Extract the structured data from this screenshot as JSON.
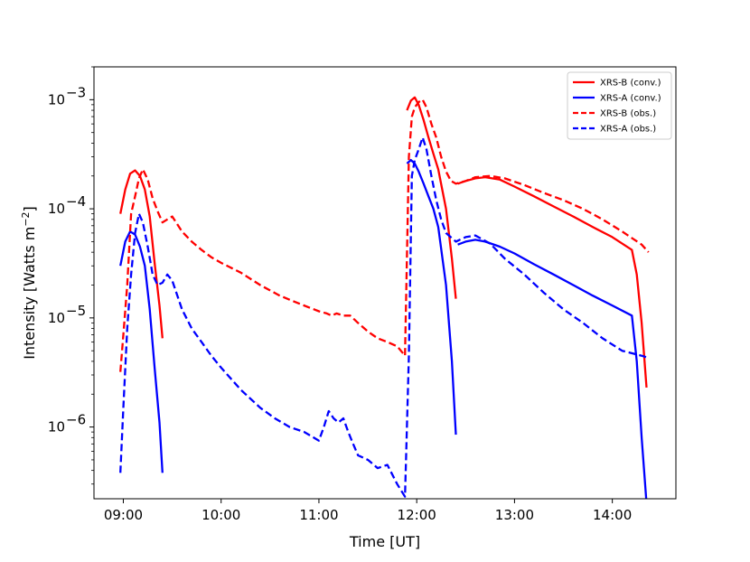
{
  "chart_data": {
    "type": "line",
    "xlabel": "Time [UT]",
    "ylabel": "Intensity [Watts m",
    "ylabel_superscript": "−2",
    "ylabel_close": "]",
    "yscale": "log",
    "xlim": [
      8.7,
      14.65
    ],
    "ylim": [
      2.2e-07,
      0.002
    ],
    "x_ticks": [
      9,
      10,
      11,
      12,
      13,
      14
    ],
    "x_tick_labels": [
      "09:00",
      "10:00",
      "11:00",
      "12:00",
      "13:00",
      "14:00"
    ],
    "y_tick_exponents": [
      -6,
      -5,
      -4,
      -3
    ],
    "y_tick_base": "10",
    "legend_position": "top-right",
    "series": [
      {
        "name": "XRS-B (conv.)",
        "color": "#ff0000",
        "style": "solid",
        "x": [
          8.97,
          9.02,
          9.07,
          9.12,
          9.17,
          9.22,
          9.27,
          9.32,
          9.37,
          9.4,
          null,
          11.9,
          11.94,
          11.98,
          12.02,
          12.07,
          12.12,
          12.17,
          12.22,
          12.3,
          12.36,
          12.4,
          null,
          12.42,
          12.5,
          12.6,
          12.7,
          12.85,
          13.0,
          13.2,
          13.4,
          13.6,
          13.8,
          14.0,
          14.2,
          14.25,
          14.3,
          14.35
        ],
        "y": [
          9e-05,
          0.00015,
          0.00021,
          0.000225,
          0.0002,
          0.00015,
          8.5e-05,
          3.2e-05,
          1.3e-05,
          6.5e-06,
          null,
          0.0008,
          0.00098,
          0.00105,
          0.0009,
          0.00065,
          0.00045,
          0.00032,
          0.00023,
          0.0001,
          3.5e-05,
          1.5e-05,
          null,
          0.00017,
          0.00018,
          0.00019,
          0.000195,
          0.000185,
          0.00016,
          0.00013,
          0.000105,
          8.5e-05,
          6.8e-05,
          5.5e-05,
          4.2e-05,
          2.5e-05,
          9e-06,
          2.3e-06
        ]
      },
      {
        "name": "XRS-A (conv.)",
        "color": "#0000ff",
        "style": "solid",
        "x": [
          8.97,
          9.02,
          9.07,
          9.12,
          9.17,
          9.22,
          9.27,
          9.32,
          9.37,
          9.4,
          null,
          11.9,
          11.94,
          11.98,
          12.02,
          12.07,
          12.12,
          12.17,
          12.22,
          12.3,
          12.36,
          12.4,
          null,
          12.42,
          12.5,
          12.6,
          12.7,
          12.85,
          13.0,
          13.2,
          13.4,
          13.6,
          13.8,
          14.0,
          14.2,
          14.25,
          14.3,
          14.35
        ],
        "y": [
          3e-05,
          5e-05,
          6.2e-05,
          5.8e-05,
          4.5e-05,
          3e-05,
          1.2e-05,
          3.5e-06,
          1.1e-06,
          3.8e-07,
          null,
          0.00026,
          0.00028,
          0.00026,
          0.00022,
          0.00017,
          0.00013,
          0.0001,
          6.8e-05,
          2e-05,
          4e-06,
          8.5e-07,
          null,
          4.7e-05,
          5e-05,
          5.2e-05,
          5e-05,
          4.5e-05,
          3.9e-05,
          3.1e-05,
          2.5e-05,
          2e-05,
          1.6e-05,
          1.3e-05,
          1.05e-05,
          4e-06,
          8e-07,
          2e-07
        ]
      },
      {
        "name": "XRS-B (obs.)",
        "color": "#ff0000",
        "style": "dashed",
        "x": [
          8.97,
          9.0,
          9.04,
          9.08,
          9.12,
          9.16,
          9.2,
          9.25,
          9.3,
          9.35,
          9.4,
          9.45,
          9.5,
          9.6,
          9.7,
          9.8,
          9.9,
          10.0,
          10.2,
          10.4,
          10.6,
          10.8,
          11.0,
          11.08,
          11.13,
          11.18,
          11.25,
          11.32,
          11.4,
          11.5,
          11.6,
          11.7,
          11.8,
          11.88,
          11.92,
          11.95,
          11.98,
          12.02,
          12.06,
          12.1,
          12.15,
          12.2,
          12.25,
          12.3,
          12.35,
          12.4,
          12.5,
          12.6,
          12.75,
          12.9,
          13.1,
          13.3,
          13.5,
          13.7,
          13.9,
          14.1,
          14.3,
          14.37
        ],
        "y": [
          3.2e-06,
          7e-06,
          2e-05,
          9e-05,
          0.00013,
          0.00019,
          0.00023,
          0.000185,
          0.000125,
          9.5e-05,
          7.5e-05,
          8e-05,
          8.5e-05,
          6.2e-05,
          5e-05,
          4.2e-05,
          3.6e-05,
          3.2e-05,
          2.6e-05,
          2e-05,
          1.6e-05,
          1.35e-05,
          1.15e-05,
          1.1e-05,
          1.05e-05,
          1.1e-05,
          1.05e-05,
          1.05e-05,
          9e-06,
          7.5e-06,
          6.5e-06,
          6e-06,
          5.5e-06,
          4.5e-06,
          0.0003,
          0.0007,
          0.00085,
          0.00095,
          0.001,
          0.00085,
          0.0006,
          0.00045,
          0.0003,
          0.00022,
          0.00018,
          0.00017,
          0.00018,
          0.000195,
          0.0002,
          0.00019,
          0.000165,
          0.00014,
          0.00012,
          0.0001,
          8e-05,
          6.2e-05,
          4.7e-05,
          4e-05
        ]
      },
      {
        "name": "XRS-A (obs.)",
        "color": "#0000ff",
        "style": "dashed",
        "x": [
          8.97,
          9.0,
          9.04,
          9.08,
          9.12,
          9.16,
          9.2,
          9.25,
          9.3,
          9.35,
          9.4,
          9.45,
          9.5,
          9.6,
          9.7,
          9.8,
          9.9,
          10.0,
          10.2,
          10.4,
          10.55,
          10.7,
          10.85,
          11.0,
          11.05,
          11.1,
          11.15,
          11.2,
          11.25,
          11.3,
          11.35,
          11.4,
          11.5,
          11.6,
          11.7,
          11.8,
          11.88,
          11.92,
          11.95,
          11.98,
          12.02,
          12.06,
          12.1,
          12.15,
          12.2,
          12.25,
          12.3,
          12.4,
          12.5,
          12.6,
          12.75,
          12.9,
          13.1,
          13.3,
          13.5,
          13.7,
          13.9,
          14.1,
          14.3,
          14.37
        ],
        "y": [
          3.8e-07,
          1.5e-06,
          8e-06,
          2.5e-05,
          6e-05,
          9e-05,
          7.5e-05,
          4.5e-05,
          2.5e-05,
          2e-05,
          2.1e-05,
          2.5e-05,
          2.2e-05,
          1.2e-05,
          8e-06,
          6e-06,
          4.5e-06,
          3.5e-06,
          2.2e-06,
          1.5e-06,
          1.2e-06,
          1e-06,
          9e-07,
          7.5e-07,
          1e-06,
          1.4e-06,
          1.2e-06,
          1.1e-06,
          1.2e-06,
          9e-07,
          7e-07,
          5.5e-07,
          5e-07,
          4.2e-07,
          4.5e-07,
          3e-07,
          2.3e-07,
          4.5e-06,
          0.0002,
          0.00028,
          0.00035,
          0.00045,
          0.00035,
          0.0002,
          0.00012,
          8e-05,
          6e-05,
          5e-05,
          5.5e-05,
          5.7e-05,
          4.8e-05,
          3.5e-05,
          2.5e-05,
          1.7e-05,
          1.2e-05,
          9e-06,
          6.5e-06,
          5e-06,
          4.5e-06,
          4.3e-06
        ]
      }
    ]
  }
}
